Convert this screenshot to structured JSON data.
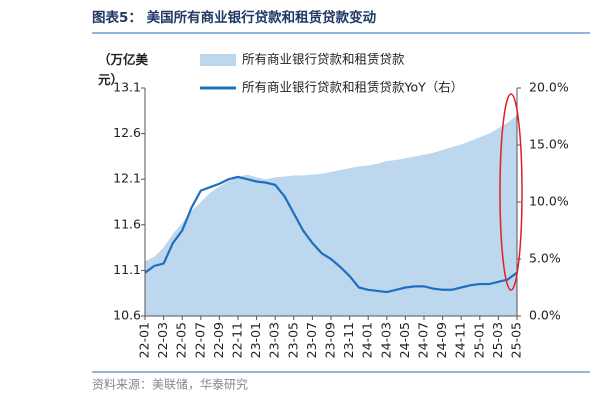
{
  "chart_data": {
    "type": "combo",
    "title": "图表5：  美国所有商业银行贷款和租赁贷款变动",
    "y_label": "（万亿美元）",
    "source": "资料来源：美联储，华泰研究",
    "categories": [
      "22-01",
      null,
      "22-03",
      null,
      "22-05",
      null,
      "22-07",
      null,
      "22-09",
      null,
      "22-11",
      null,
      "23-01",
      null,
      "23-03",
      null,
      "23-05",
      null,
      "23-07",
      null,
      "23-09",
      null,
      "23-11",
      null,
      "24-01",
      null,
      "24-03",
      null,
      "24-05",
      null,
      "24-07",
      null,
      "24-09",
      null,
      "24-11",
      null,
      "25-01",
      null,
      "25-03",
      null,
      "25-05"
    ],
    "ylim": [
      10.6,
      13.1
    ],
    "yticks": [
      10.6,
      11.1,
      11.6,
      12.1,
      12.6,
      13.1
    ],
    "y2lim": [
      0,
      20
    ],
    "y2ticks": [
      {
        "value": 0,
        "label": "0.0%"
      },
      {
        "value": 5,
        "label": "5.0%"
      },
      {
        "value": 10,
        "label": "10.0%"
      },
      {
        "value": 15,
        "label": "15.0%"
      },
      {
        "value": 20,
        "label": "20.0%"
      }
    ],
    "series": [
      {
        "name": "所有商业银行贷款和租赁贷款",
        "type": "area",
        "color": "#bdd7ee",
        "values": [
          11.2,
          11.25,
          11.35,
          11.5,
          11.62,
          11.75,
          11.85,
          11.95,
          12.02,
          12.08,
          12.12,
          12.15,
          12.12,
          12.1,
          12.12,
          12.13,
          12.14,
          12.14,
          12.15,
          12.16,
          12.18,
          12.2,
          12.22,
          12.24,
          12.25,
          12.27,
          12.3,
          12.31,
          12.33,
          12.35,
          12.37,
          12.39,
          12.42,
          12.45,
          12.48,
          12.52,
          12.56,
          12.6,
          12.66,
          12.72,
          12.8
        ]
      },
      {
        "name": "所有商业银行贷款和租赁贷款YoY（右）",
        "type": "line",
        "axis": "y2",
        "color": "#1f6fbf",
        "values": [
          3.8,
          4.4,
          4.6,
          6.4,
          7.5,
          9.5,
          11.0,
          11.3,
          11.6,
          12.0,
          12.2,
          12.0,
          11.8,
          11.7,
          11.5,
          10.5,
          9.0,
          7.5,
          6.4,
          5.5,
          5.0,
          4.3,
          3.5,
          2.5,
          2.3,
          2.2,
          2.1,
          2.3,
          2.5,
          2.6,
          2.6,
          2.4,
          2.3,
          2.3,
          2.5,
          2.7,
          2.8,
          2.8,
          3.0,
          3.2,
          3.8
        ]
      }
    ]
  }
}
